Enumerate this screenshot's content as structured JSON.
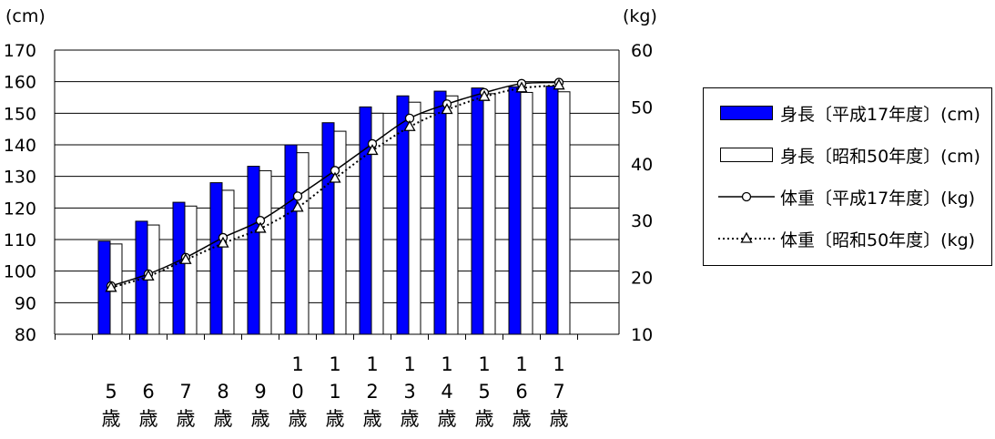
{
  "chart_data": {
    "type": "bar",
    "y_left_unit": "(cm)",
    "y_right_unit": "(kg)",
    "y_left_lim": [
      80,
      170
    ],
    "y_left_ticks": [
      80,
      90,
      100,
      110,
      120,
      130,
      140,
      150,
      160,
      170
    ],
    "y_right_lim": [
      10,
      60
    ],
    "y_right_ticks": [
      10,
      20,
      30,
      40,
      50,
      60
    ],
    "grid": true,
    "legend_position": "right",
    "categories": [
      "5歳",
      "6歳",
      "7歳",
      "8歳",
      "9歳",
      "10歳",
      "11歳",
      "12歳",
      "13歳",
      "14歳",
      "15歳",
      "16歳",
      "17歳"
    ],
    "series": [
      {
        "name": "身長〔平成17年度〕(cm)",
        "type": "bar",
        "axis": "left",
        "color": "#0000ff",
        "values": [
          109.5,
          115.8,
          121.8,
          128.0,
          133.2,
          140.0,
          147.0,
          152.0,
          155.5,
          157.0,
          158.0,
          158.4,
          158.6
        ]
      },
      {
        "name": "身長〔昭和50年度〕(cm)",
        "type": "bar",
        "axis": "left",
        "color": "#ffffff",
        "values": [
          108.6,
          114.6,
          120.6,
          125.6,
          131.8,
          137.5,
          144.3,
          150.0,
          153.5,
          155.5,
          156.2,
          156.6,
          156.8
        ]
      },
      {
        "name": "体重〔平成17年度〕(kg)",
        "type": "line",
        "axis": "right",
        "marker": "circle",
        "dash": "solid",
        "values": [
          18.5,
          20.6,
          23.5,
          27.0,
          30.0,
          34.3,
          38.8,
          43.5,
          48.0,
          50.5,
          52.5,
          54.1,
          54.3
        ]
      },
      {
        "name": "体重〔昭和50年度〕(kg)",
        "type": "line",
        "axis": "right",
        "marker": "triangle",
        "dash": "dotted",
        "values": [
          18.2,
          20.2,
          23.1,
          26.0,
          28.6,
          32.3,
          37.4,
          42.3,
          46.5,
          49.5,
          51.8,
          53.3,
          53.8
        ]
      }
    ]
  }
}
